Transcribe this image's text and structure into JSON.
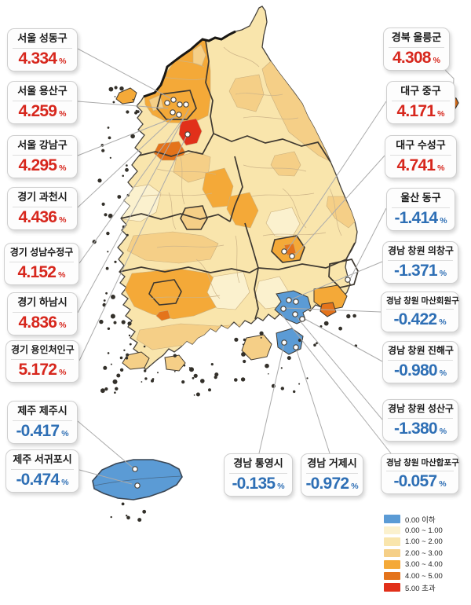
{
  "chart_data": {
    "type": "heatmap",
    "subtype": "choropleth-map-south-korea-districts",
    "unit": "%",
    "legend_position": "bottom-right",
    "legend": [
      {
        "label": "0.00 이하",
        "color": "#5B9BD5"
      },
      {
        "label": "0.00 ~ 1.00",
        "color": "#FBF1CE"
      },
      {
        "label": "1.00 ~ 2.00",
        "color": "#F9E5AC"
      },
      {
        "label": "2.00 ~ 3.00",
        "color": "#F5CF87"
      },
      {
        "label": "3.00 ~ 4.00",
        "color": "#F4A938"
      },
      {
        "label": "4.00 ~ 5.00",
        "color": "#E4731B"
      },
      {
        "label": "5.00 초과",
        "color": "#E1301A"
      }
    ],
    "value_colors": {
      "positive": "#D7271D",
      "negative": "#2E6FB5"
    },
    "regions": [
      {
        "id": "seoul-seongdong",
        "name": "서울 성동구",
        "value": 4.334,
        "display": "4.334"
      },
      {
        "id": "seoul-yongsan",
        "name": "서울 용산구",
        "value": 4.259,
        "display": "4.259"
      },
      {
        "id": "seoul-gangnam",
        "name": "서울 강남구",
        "value": 4.295,
        "display": "4.295"
      },
      {
        "id": "gyeonggi-gwacheon",
        "name": "경기 과천시",
        "value": 4.436,
        "display": "4.436"
      },
      {
        "id": "gyeonggi-seongnam-sujeong",
        "name": "경기 성남수정구",
        "value": 4.152,
        "display": "4.152"
      },
      {
        "id": "gyeonggi-hanam",
        "name": "경기 하남시",
        "value": 4.836,
        "display": "4.836"
      },
      {
        "id": "gyeonggi-yongin-cheoin",
        "name": "경기 용인처인구",
        "value": 5.172,
        "display": "5.172"
      },
      {
        "id": "jeju-jeju",
        "name": "제주 제주시",
        "value": -0.417,
        "display": "-0.417"
      },
      {
        "id": "jeju-seogwipo",
        "name": "제주 서귀포시",
        "value": -0.474,
        "display": "-0.474"
      },
      {
        "id": "gyeongbuk-ulleung",
        "name": "경북 울릉군",
        "value": 4.308,
        "display": "4.308"
      },
      {
        "id": "daegu-jung",
        "name": "대구 중구",
        "value": 4.171,
        "display": "4.171"
      },
      {
        "id": "daegu-suseong",
        "name": "대구 수성구",
        "value": 4.741,
        "display": "4.741"
      },
      {
        "id": "ulsan-dong",
        "name": "울산 동구",
        "value": -1.414,
        "display": "-1.414"
      },
      {
        "id": "changwon-uichang",
        "name": "경남 창원 의창구",
        "value": -1.371,
        "display": "-1.371"
      },
      {
        "id": "changwon-masanhoewon",
        "name": "경남 창원 마산회원구",
        "value": -0.422,
        "display": "-0.422"
      },
      {
        "id": "changwon-jinhae",
        "name": "경남 창원 진해구",
        "value": -0.98,
        "display": "-0.980"
      },
      {
        "id": "changwon-seongsan",
        "name": "경남 창원 성산구",
        "value": -1.38,
        "display": "-1.380"
      },
      {
        "id": "changwon-masanhappo",
        "name": "경남 창원 마산합포구",
        "value": -0.057,
        "display": "-0.057"
      },
      {
        "id": "gyeongnam-tongyeong",
        "name": "경남 통영시",
        "value": -0.135,
        "display": "-0.135"
      },
      {
        "id": "gyeongnam-geoje",
        "name": "경남 거제시",
        "value": -0.972,
        "display": "-0.972"
      }
    ]
  }
}
